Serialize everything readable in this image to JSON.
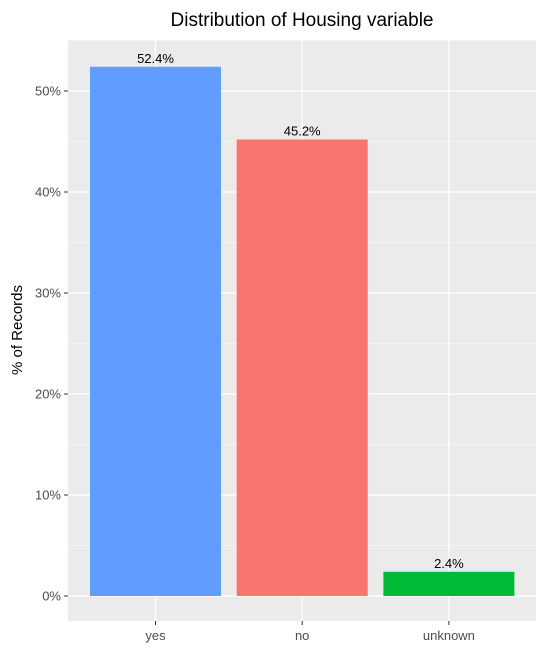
{
  "chart_data": {
    "type": "bar",
    "title": "Distribution of Housing variable",
    "xlabel": "",
    "ylabel": "% of Records",
    "categories": [
      "yes",
      "no",
      "unknown"
    ],
    "values": [
      52.4,
      45.2,
      2.4
    ],
    "data_labels": [
      "52.4%",
      "45.2%",
      "2.4%"
    ],
    "colors": [
      "#619CFF",
      "#F8766D",
      "#00BA38"
    ],
    "ylim": [
      0,
      55
    ],
    "y_ticks": [
      0,
      10,
      20,
      30,
      40,
      50
    ],
    "y_tick_labels": [
      "0%",
      "10%",
      "20%",
      "30%",
      "40%",
      "50%"
    ],
    "grid": true,
    "panel_color": "#EBEBEB",
    "grid_color": "#FFFFFF"
  }
}
